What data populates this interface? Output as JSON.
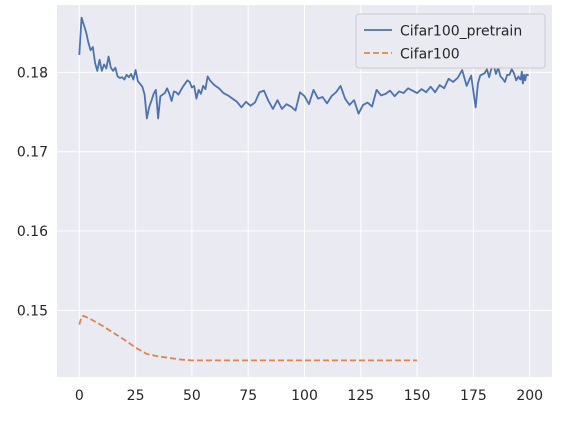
{
  "chart_data": {
    "type": "line",
    "title": "",
    "xlabel": "",
    "ylabel": "",
    "xlim": [
      -9.9,
      209.9
    ],
    "ylim": [
      0.1416,
      0.1885
    ],
    "grid": true,
    "legend_position": "top-right",
    "x_ticks": [
      0,
      25,
      50,
      75,
      100,
      125,
      150,
      175,
      200
    ],
    "y_ticks": [
      0.15,
      0.16,
      0.17,
      0.18
    ],
    "y_tick_labels": [
      "0.15",
      "0.16",
      "0.17",
      "0.18"
    ],
    "colors": {
      "background": "#eaeaf2",
      "grid": "#ffffff",
      "tick_text": "#262626",
      "legend_bg": "#eaeaf2",
      "legend_border": "#cccccc"
    },
    "series": [
      {
        "name": "Cifar100_pretrain",
        "color": "#4c72b0",
        "dash": "solid",
        "values": [
          0.1822,
          0.1869,
          0.1851,
          0.1838,
          0.1828,
          0.1832,
          0.1812,
          0.1802,
          0.1816,
          0.1802,
          0.181,
          0.1805,
          0.182,
          0.1806,
          0.1802,
          0.1806,
          0.1795,
          0.1793,
          0.1794,
          0.1791,
          0.1797,
          0.1794,
          0.1798,
          0.1791,
          0.1803,
          0.1789,
          0.1782,
          0.1772,
          0.1742,
          0.1756,
          0.1764,
          0.1773,
          0.1778,
          0.1742,
          0.177,
          0.1774,
          0.178,
          0.1773,
          0.1764,
          0.1776,
          0.1775,
          0.1772,
          0.1782,
          0.179,
          0.1788,
          0.1781,
          0.1783,
          0.1767,
          0.1778,
          0.1773,
          0.1783,
          0.1779,
          0.1795,
          0.179,
          0.1784,
          0.178,
          0.1774,
          0.1771,
          0.1767,
          0.1763,
          0.1756,
          0.1763,
          0.1758,
          0.1762,
          0.1775,
          0.1777,
          0.1764,
          0.1754,
          0.1765,
          0.1754,
          0.176,
          0.1757,
          0.1752,
          0.1775,
          0.177,
          0.176,
          0.1778,
          0.1767,
          0.1769,
          0.1761,
          0.177,
          0.1775,
          0.1783,
          0.1767,
          0.1759,
          0.1765,
          0.1748,
          0.1759,
          0.1762,
          0.1757,
          0.1778,
          0.1771,
          0.1773,
          0.1777,
          0.177,
          0.1776,
          0.1774,
          0.178,
          0.1777,
          0.1774,
          0.1779,
          0.1775,
          0.1782,
          0.1775,
          0.1784,
          0.178,
          0.1792,
          0.1788,
          0.1793,
          0.1803,
          0.1783,
          0.1796,
          0.1756,
          0.1786,
          0.1796,
          0.1799,
          0.1804,
          0.1794,
          0.1805,
          0.1809,
          0.1798,
          0.1806,
          0.1795,
          0.1792,
          0.1788,
          0.1797,
          0.1797,
          0.1804,
          0.1799,
          0.179,
          0.1795,
          0.1791,
          0.1786,
          0.179,
          0.1797,
          0.1792,
          0.1801,
          0.1797,
          0.1797,
          0.1796
        ],
        "x": [
          0,
          1,
          3,
          4,
          5,
          6,
          7,
          8,
          9,
          10,
          11,
          12,
          13,
          14,
          15,
          16,
          17,
          18,
          19,
          20,
          21,
          22,
          23,
          24,
          25,
          26,
          28,
          29,
          30,
          31,
          32,
          33,
          34,
          35,
          36,
          38,
          39,
          40,
          41,
          42,
          43,
          44,
          46,
          48,
          49,
          50,
          51,
          52,
          53,
          54,
          55,
          56,
          57,
          58,
          60,
          62,
          64,
          66,
          68,
          70,
          72,
          74,
          76,
          78,
          80,
          82,
          84,
          86,
          88,
          90,
          92,
          94,
          96,
          98,
          100,
          102,
          104,
          106,
          108,
          110,
          112,
          114,
          116,
          118,
          120,
          122,
          124,
          126,
          128,
          130,
          132,
          134,
          136,
          138,
          140,
          142,
          144,
          146,
          148,
          150,
          152,
          154,
          156,
          158,
          160,
          162,
          164,
          166,
          168,
          170,
          172,
          174,
          176,
          177,
          178,
          180,
          181,
          182,
          183,
          184,
          185,
          186,
          187,
          188,
          189,
          190,
          191,
          192,
          193,
          194,
          195,
          196,
          197,
          198,
          199,
          195.5,
          196.5,
          197.5,
          198.5,
          199.5
        ]
      },
      {
        "name": "Cifar100",
        "color": "#dd8452",
        "dash": "dashed",
        "x": [
          0,
          1,
          2,
          5,
          10,
          15,
          20,
          25,
          30,
          35,
          40,
          45,
          50,
          100,
          150
        ],
        "values": [
          0.1482,
          0.1492,
          0.1493,
          0.1489,
          0.1481,
          0.1472,
          0.1463,
          0.1453,
          0.1445,
          0.1442,
          0.144,
          0.1438,
          0.1437,
          0.1437,
          0.1437
        ]
      }
    ]
  }
}
